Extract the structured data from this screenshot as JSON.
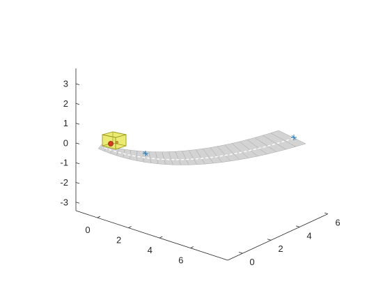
{
  "chart_data": {
    "type": "3d-surface-scene",
    "title": "",
    "xlabel": "",
    "ylabel": "",
    "zlabel": "",
    "grid": false,
    "z_axis": {
      "ticks": [
        3,
        2,
        1,
        0,
        -1,
        -2,
        -3
      ],
      "tick_labels": [
        "3",
        "2",
        "1",
        "0",
        "-1",
        "-2",
        "-3"
      ],
      "range": [
        -3.5,
        3.5
      ]
    },
    "front_left_axis": {
      "ticks": [
        0,
        2,
        4,
        6
      ],
      "tick_labels": [
        "0",
        "2",
        "4",
        "6"
      ]
    },
    "front_right_axis": {
      "ticks": [
        0,
        2,
        4,
        6
      ],
      "tick_labels": [
        "0",
        "2",
        "4",
        "6"
      ]
    },
    "road": {
      "description": "gray curved road surface with white center line",
      "surface_color": "#d3d3d3",
      "edge_color": "#a8a8a8",
      "centerline_color": "#ffffff"
    },
    "vehicle": {
      "box_color": "#e8e85a",
      "outline_color": "#9a9a20",
      "marker_color": "#d23c1e"
    },
    "waypoints": {
      "marker_color": "#1f77b4",
      "count": 2
    }
  }
}
